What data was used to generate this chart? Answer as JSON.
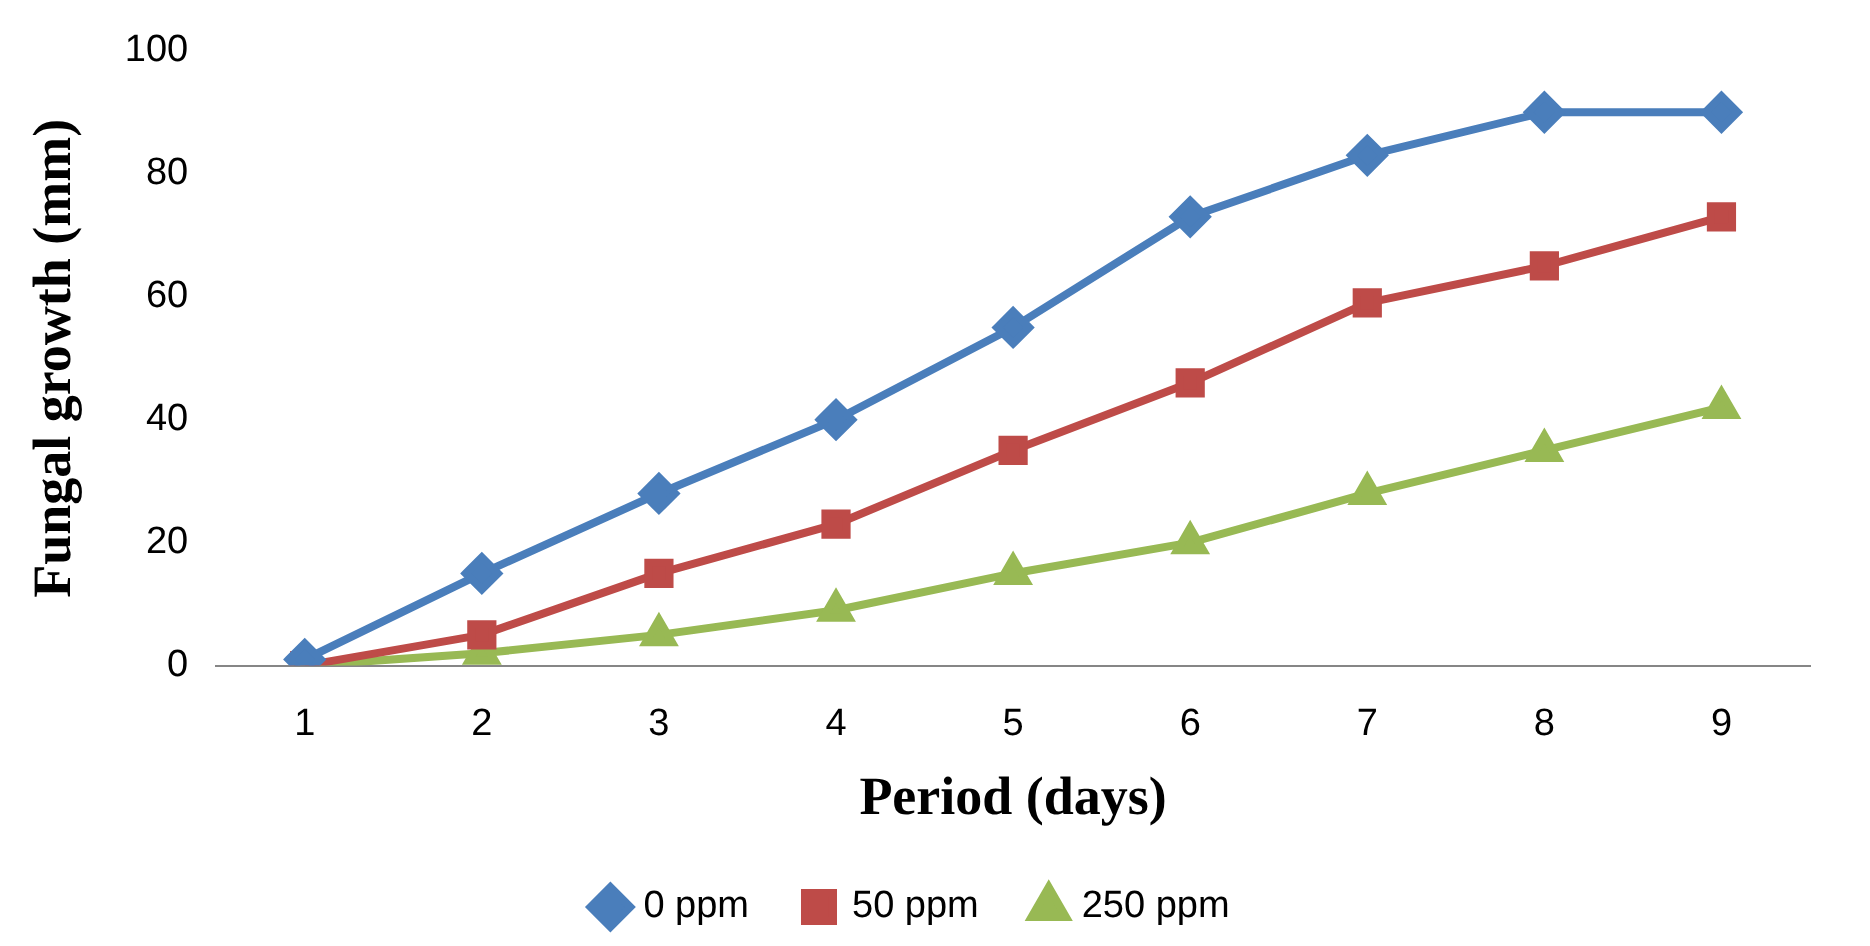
{
  "chart_data": {
    "type": "line",
    "xlabel": "Period (days)",
    "ylabel": "Fungal growth (mm)",
    "categories": [
      "1",
      "2",
      "3",
      "4",
      "5",
      "6",
      "7",
      "8",
      "9"
    ],
    "series": [
      {
        "name": "0 ppm",
        "color": "#4a7ebb",
        "marker": "diamond",
        "values": [
          1,
          15,
          28,
          40,
          55,
          73,
          83,
          90,
          90
        ]
      },
      {
        "name": "50 ppm",
        "color": "#be4b48",
        "marker": "square",
        "values": [
          0,
          5,
          15,
          23,
          35,
          46,
          59,
          65,
          73
        ]
      },
      {
        "name": "250 ppm",
        "color": "#98b954",
        "marker": "triangle",
        "values": [
          0,
          2,
          5,
          9,
          15,
          20,
          28,
          35,
          42
        ]
      }
    ],
    "ylim": [
      0,
      100
    ],
    "yticks": [
      0,
      20,
      40,
      60,
      80,
      100
    ],
    "grid": false,
    "legend": "bottom",
    "line_style": "solid"
  }
}
